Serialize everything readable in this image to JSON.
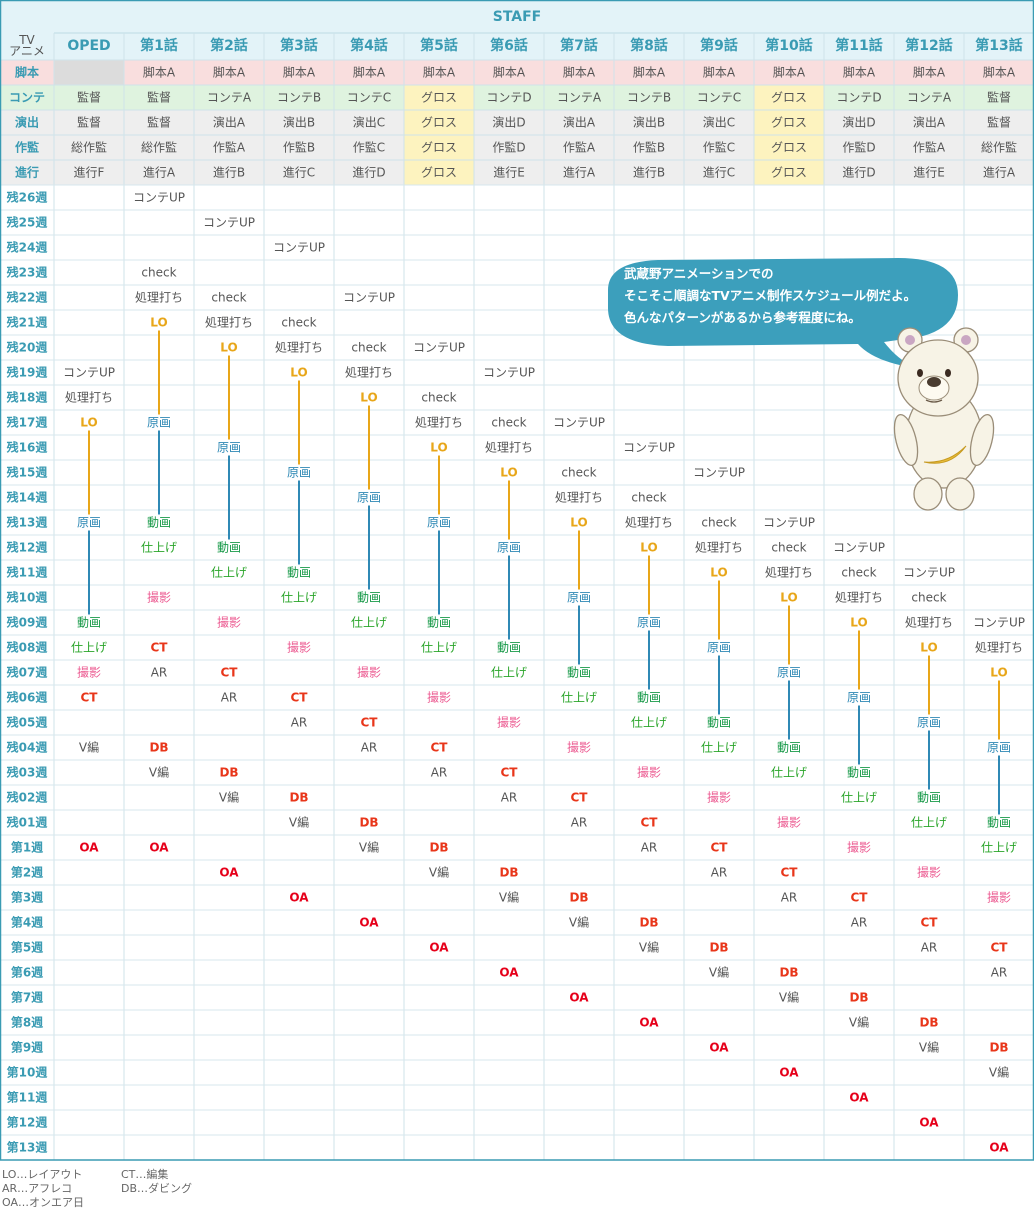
{
  "title": "STAFF",
  "corner_label": [
    "TV",
    "アニメ"
  ],
  "columns": [
    "OPED",
    "第1話",
    "第2話",
    "第3話",
    "第4話",
    "第5話",
    "第6話",
    "第7話",
    "第8話",
    "第9話",
    "第10話",
    "第11話",
    "第12話",
    "第13話"
  ],
  "staff_rows": [
    {
      "label": "脚本",
      "cells": [
        "",
        "脚本A",
        "脚本A",
        "脚本A",
        "脚本A",
        "脚本A",
        "脚本A",
        "脚本A",
        "脚本A",
        "脚本A",
        "脚本A",
        "脚本A",
        "脚本A",
        "脚本A"
      ]
    },
    {
      "label": "コンテ",
      "cells": [
        "監督",
        "監督",
        "コンテA",
        "コンテB",
        "コンテC",
        "グロス",
        "コンテD",
        "コンテA",
        "コンテB",
        "コンテC",
        "グロス",
        "コンテD",
        "コンテA",
        "監督"
      ]
    },
    {
      "label": "演出",
      "cells": [
        "監督",
        "監督",
        "演出A",
        "演出B",
        "演出C",
        "グロス",
        "演出D",
        "演出A",
        "演出B",
        "演出C",
        "グロス",
        "演出D",
        "演出A",
        "監督"
      ]
    },
    {
      "label": "作監",
      "cells": [
        "総作監",
        "総作監",
        "作監A",
        "作監B",
        "作監C",
        "グロス",
        "作監D",
        "作監A",
        "作監B",
        "作監C",
        "グロス",
        "作監D",
        "作監A",
        "総作監"
      ]
    },
    {
      "label": "進行",
      "cells": [
        "進行F",
        "進行A",
        "進行B",
        "進行C",
        "進行D",
        "グロス",
        "進行E",
        "進行A",
        "進行B",
        "進行C",
        "グロス",
        "進行D",
        "進行E",
        "進行A"
      ]
    }
  ],
  "weeks": [
    "残26週",
    "残25週",
    "残24週",
    "残23週",
    "残22週",
    "残21週",
    "残20週",
    "残19週",
    "残18週",
    "残17週",
    "残16週",
    "残15週",
    "残14週",
    "残13週",
    "残12週",
    "残11週",
    "残10週",
    "残09週",
    "残08週",
    "残07週",
    "残06週",
    "残05週",
    "残04週",
    "残03週",
    "残02週",
    "残01週",
    "第1週",
    "第2週",
    "第3週",
    "第4週",
    "第5週",
    "第6週",
    "第7週",
    "第8週",
    "第9週",
    "第10週",
    "第11週",
    "第12週",
    "第13週"
  ],
  "schedule": [
    [
      {
        "row": 7,
        "text": "コンテUP"
      },
      {
        "row": 8,
        "text": "処理打ち"
      },
      {
        "row": 9,
        "text": "LO"
      },
      {
        "row": 13,
        "text": "原画"
      },
      {
        "row": 17,
        "text": "動画"
      },
      {
        "row": 18,
        "text": "仕上げ"
      },
      {
        "row": 19,
        "text": "撮影"
      },
      {
        "row": 20,
        "text": "CT"
      },
      {
        "row": 22,
        "text": "V編"
      },
      {
        "row": 26,
        "text": "OA"
      }
    ],
    [
      {
        "row": 0,
        "text": "コンテUP"
      },
      {
        "row": 3,
        "text": "check"
      },
      {
        "row": 4,
        "text": "処理打ち"
      },
      {
        "row": 5,
        "text": "LO"
      },
      {
        "row": 9,
        "text": "原画"
      },
      {
        "row": 13,
        "text": "動画"
      },
      {
        "row": 14,
        "text": "仕上げ"
      },
      {
        "row": 16,
        "text": "撮影"
      },
      {
        "row": 18,
        "text": "CT"
      },
      {
        "row": 19,
        "text": "AR"
      },
      {
        "row": 22,
        "text": "DB"
      },
      {
        "row": 23,
        "text": "V編"
      },
      {
        "row": 26,
        "text": "OA"
      }
    ],
    [
      {
        "row": 1,
        "text": "コンテUP"
      },
      {
        "row": 4,
        "text": "check"
      },
      {
        "row": 5,
        "text": "処理打ち"
      },
      {
        "row": 6,
        "text": "LO"
      },
      {
        "row": 10,
        "text": "原画"
      },
      {
        "row": 14,
        "text": "動画"
      },
      {
        "row": 15,
        "text": "仕上げ"
      },
      {
        "row": 17,
        "text": "撮影"
      },
      {
        "row": 19,
        "text": "CT"
      },
      {
        "row": 20,
        "text": "AR"
      },
      {
        "row": 23,
        "text": "DB"
      },
      {
        "row": 24,
        "text": "V編"
      },
      {
        "row": 27,
        "text": "OA"
      }
    ],
    [
      {
        "row": 2,
        "text": "コンテUP"
      },
      {
        "row": 5,
        "text": "check"
      },
      {
        "row": 6,
        "text": "処理打ち"
      },
      {
        "row": 7,
        "text": "LO"
      },
      {
        "row": 11,
        "text": "原画"
      },
      {
        "row": 15,
        "text": "動画"
      },
      {
        "row": 16,
        "text": "仕上げ"
      },
      {
        "row": 18,
        "text": "撮影"
      },
      {
        "row": 20,
        "text": "CT"
      },
      {
        "row": 21,
        "text": "AR"
      },
      {
        "row": 24,
        "text": "DB"
      },
      {
        "row": 25,
        "text": "V編"
      },
      {
        "row": 28,
        "text": "OA"
      }
    ],
    [
      {
        "row": 4,
        "text": "コンテUP"
      },
      {
        "row": 6,
        "text": "check"
      },
      {
        "row": 7,
        "text": "処理打ち"
      },
      {
        "row": 8,
        "text": "LO"
      },
      {
        "row": 12,
        "text": "原画"
      },
      {
        "row": 16,
        "text": "動画"
      },
      {
        "row": 17,
        "text": "仕上げ"
      },
      {
        "row": 19,
        "text": "撮影"
      },
      {
        "row": 21,
        "text": "CT"
      },
      {
        "row": 22,
        "text": "AR"
      },
      {
        "row": 25,
        "text": "DB"
      },
      {
        "row": 26,
        "text": "V編"
      },
      {
        "row": 29,
        "text": "OA"
      }
    ],
    [
      {
        "row": 6,
        "text": "コンテUP"
      },
      {
        "row": 8,
        "text": "check"
      },
      {
        "row": 9,
        "text": "処理打ち"
      },
      {
        "row": 10,
        "text": "LO"
      },
      {
        "row": 13,
        "text": "原画"
      },
      {
        "row": 17,
        "text": "動画"
      },
      {
        "row": 18,
        "text": "仕上げ"
      },
      {
        "row": 20,
        "text": "撮影"
      },
      {
        "row": 22,
        "text": "CT"
      },
      {
        "row": 23,
        "text": "AR"
      },
      {
        "row": 26,
        "text": "DB"
      },
      {
        "row": 27,
        "text": "V編"
      },
      {
        "row": 30,
        "text": "OA"
      }
    ],
    [
      {
        "row": 7,
        "text": "コンテUP"
      },
      {
        "row": 9,
        "text": "check"
      },
      {
        "row": 10,
        "text": "処理打ち"
      },
      {
        "row": 11,
        "text": "LO"
      },
      {
        "row": 14,
        "text": "原画"
      },
      {
        "row": 18,
        "text": "動画"
      },
      {
        "row": 19,
        "text": "仕上げ"
      },
      {
        "row": 21,
        "text": "撮影"
      },
      {
        "row": 23,
        "text": "CT"
      },
      {
        "row": 24,
        "text": "AR"
      },
      {
        "row": 27,
        "text": "DB"
      },
      {
        "row": 28,
        "text": "V編"
      },
      {
        "row": 31,
        "text": "OA"
      }
    ],
    [
      {
        "row": 9,
        "text": "コンテUP"
      },
      {
        "row": 11,
        "text": "check"
      },
      {
        "row": 12,
        "text": "処理打ち"
      },
      {
        "row": 13,
        "text": "LO"
      },
      {
        "row": 16,
        "text": "原画"
      },
      {
        "row": 19,
        "text": "動画"
      },
      {
        "row": 20,
        "text": "仕上げ"
      },
      {
        "row": 22,
        "text": "撮影"
      },
      {
        "row": 24,
        "text": "CT"
      },
      {
        "row": 25,
        "text": "AR"
      },
      {
        "row": 28,
        "text": "DB"
      },
      {
        "row": 29,
        "text": "V編"
      },
      {
        "row": 32,
        "text": "OA"
      }
    ],
    [
      {
        "row": 10,
        "text": "コンテUP"
      },
      {
        "row": 12,
        "text": "check"
      },
      {
        "row": 13,
        "text": "処理打ち"
      },
      {
        "row": 14,
        "text": "LO"
      },
      {
        "row": 17,
        "text": "原画"
      },
      {
        "row": 20,
        "text": "動画"
      },
      {
        "row": 21,
        "text": "仕上げ"
      },
      {
        "row": 23,
        "text": "撮影"
      },
      {
        "row": 25,
        "text": "CT"
      },
      {
        "row": 26,
        "text": "AR"
      },
      {
        "row": 29,
        "text": "DB"
      },
      {
        "row": 30,
        "text": "V編"
      },
      {
        "row": 33,
        "text": "OA"
      }
    ],
    [
      {
        "row": 11,
        "text": "コンテUP"
      },
      {
        "row": 13,
        "text": "check"
      },
      {
        "row": 14,
        "text": "処理打ち"
      },
      {
        "row": 15,
        "text": "LO"
      },
      {
        "row": 18,
        "text": "原画"
      },
      {
        "row": 21,
        "text": "動画"
      },
      {
        "row": 22,
        "text": "仕上げ"
      },
      {
        "row": 24,
        "text": "撮影"
      },
      {
        "row": 26,
        "text": "CT"
      },
      {
        "row": 27,
        "text": "AR"
      },
      {
        "row": 30,
        "text": "DB"
      },
      {
        "row": 31,
        "text": "V編"
      },
      {
        "row": 34,
        "text": "OA"
      }
    ],
    [
      {
        "row": 13,
        "text": "コンテUP"
      },
      {
        "row": 14,
        "text": "check"
      },
      {
        "row": 15,
        "text": "処理打ち"
      },
      {
        "row": 16,
        "text": "LO"
      },
      {
        "row": 19,
        "text": "原画"
      },
      {
        "row": 22,
        "text": "動画"
      },
      {
        "row": 23,
        "text": "仕上げ"
      },
      {
        "row": 25,
        "text": "撮影"
      },
      {
        "row": 27,
        "text": "CT"
      },
      {
        "row": 28,
        "text": "AR"
      },
      {
        "row": 31,
        "text": "DB"
      },
      {
        "row": 32,
        "text": "V編"
      },
      {
        "row": 35,
        "text": "OA"
      }
    ],
    [
      {
        "row": 14,
        "text": "コンテUP"
      },
      {
        "row": 15,
        "text": "check"
      },
      {
        "row": 16,
        "text": "処理打ち"
      },
      {
        "row": 17,
        "text": "LO"
      },
      {
        "row": 20,
        "text": "原画"
      },
      {
        "row": 23,
        "text": "動画"
      },
      {
        "row": 24,
        "text": "仕上げ"
      },
      {
        "row": 26,
        "text": "撮影"
      },
      {
        "row": 28,
        "text": "CT"
      },
      {
        "row": 29,
        "text": "AR"
      },
      {
        "row": 32,
        "text": "DB"
      },
      {
        "row": 33,
        "text": "V編"
      },
      {
        "row": 36,
        "text": "OA"
      }
    ],
    [
      {
        "row": 15,
        "text": "コンテUP"
      },
      {
        "row": 16,
        "text": "check"
      },
      {
        "row": 17,
        "text": "処理打ち"
      },
      {
        "row": 18,
        "text": "LO"
      },
      {
        "row": 21,
        "text": "原画"
      },
      {
        "row": 24,
        "text": "動画"
      },
      {
        "row": 25,
        "text": "仕上げ"
      },
      {
        "row": 27,
        "text": "撮影"
      },
      {
        "row": 29,
        "text": "CT"
      },
      {
        "row": 30,
        "text": "AR"
      },
      {
        "row": 33,
        "text": "DB"
      },
      {
        "row": 34,
        "text": "V編"
      },
      {
        "row": 37,
        "text": "OA"
      }
    ],
    [
      {
        "row": 17,
        "text": "コンテUP"
      },
      {
        "row": 18,
        "text": "処理打ち"
      },
      {
        "row": 19,
        "text": "LO"
      },
      {
        "row": 22,
        "text": "原画"
      },
      {
        "row": 25,
        "text": "動画"
      },
      {
        "row": 26,
        "text": "仕上げ"
      },
      {
        "row": 28,
        "text": "撮影"
      },
      {
        "row": 30,
        "text": "CT"
      },
      {
        "row": 31,
        "text": "AR"
      },
      {
        "row": 34,
        "text": "DB"
      },
      {
        "row": 35,
        "text": "V編"
      },
      {
        "row": 38,
        "text": "OA"
      }
    ]
  ],
  "task_colors": {
    "LO": "#e8a619",
    "原画": "#2f89b5",
    "動画": "#1a9a4a",
    "仕上げ": "#2aa52a",
    "撮影": "#ec5d93",
    "CT": "#e8361a",
    "DB": "#e8361a",
    "OA": "#e6001a",
    "AR": "#555555",
    "V編": "#555555",
    "コンテUP": "#555555",
    "check": "#555555",
    "処理打ち": "#555555"
  },
  "speech_bubble": [
    "武蔵野アニメーションでの",
    "そこそこ順調なTVアニメ制作スケジュール例だよ。",
    "色んなパターンがあるから参考程度にね。"
  ],
  "legend": [
    [
      "LO…レイアウト",
      "CT…編集"
    ],
    [
      "AR…アフレコ",
      "DB…ダビング"
    ],
    [
      "OA…オンエア日"
    ]
  ],
  "colors": {
    "accent": "#3a9bb3",
    "header_bg": "#e3f3f8",
    "row_pink": "#f9dede",
    "row_green": "#dff3df",
    "row_gray": "#eeeeee",
    "gross": "#fdf3bf",
    "bubble": "#3c9fbc"
  },
  "icons": {
    "mascot": "bear-mascot-icon"
  }
}
